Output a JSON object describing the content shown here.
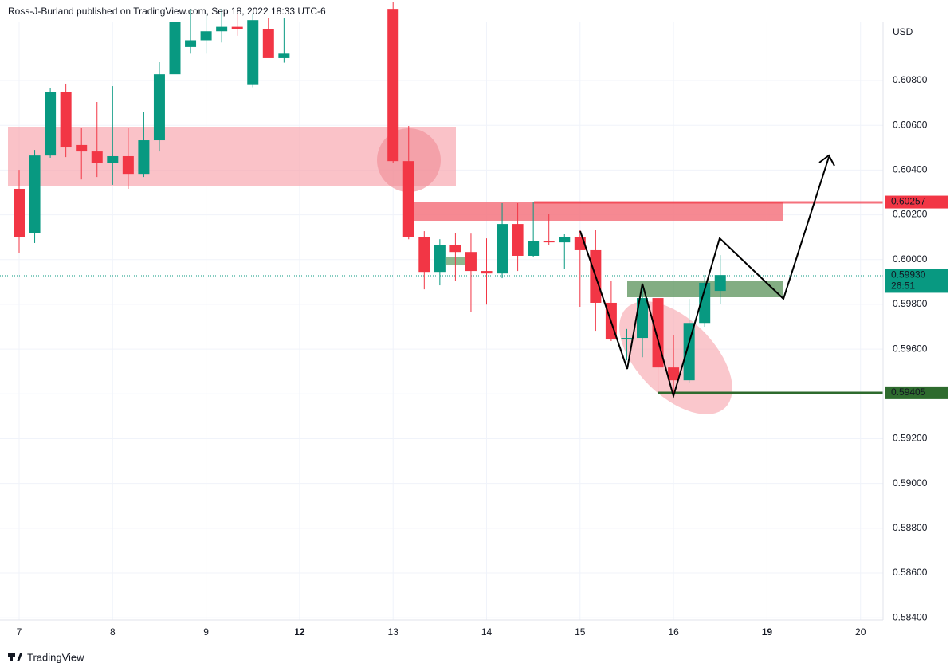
{
  "header": {
    "text": "Ross-J-Burland published on TradingView.com, Sep 18, 2022 18:33 UTC-6"
  },
  "footer": {
    "brand": "TradingView"
  },
  "chart_data": {
    "type": "candlestick",
    "currency": "USD",
    "up_color": "#089981",
    "down_color": "#f23645",
    "categories": [
      "7",
      null,
      null,
      null,
      null,
      null,
      "8",
      null,
      null,
      null,
      null,
      null,
      "9",
      null,
      null,
      null,
      null,
      null,
      "12",
      null,
      null,
      null,
      null,
      null,
      "13",
      null,
      null,
      null,
      null,
      null,
      "14",
      null,
      null,
      null,
      null,
      null,
      "15",
      null,
      null,
      null,
      null,
      null,
      "16",
      null,
      null,
      null,
      null,
      null,
      "19",
      null,
      null,
      null,
      null,
      null,
      "20"
    ],
    "bold_categories": [
      "12",
      "19"
    ],
    "open": [
      0.60316,
      0.6012,
      0.60465,
      0.6075,
      0.60512,
      0.60483,
      0.6043,
      0.60462,
      0.60383,
      0.60533,
      0.60828,
      0.6095,
      0.6098,
      0.6102,
      0.6104,
      0.6078,
      0.6103,
      0.609,
      null,
      null,
      null,
      null,
      null,
      null,
      0.6112,
      0.6044,
      0.60102,
      0.59945,
      0.60066,
      0.60034,
      0.59949,
      0.59938,
      0.60159,
      0.60017,
      0.60081,
      0.60077,
      0.60099,
      0.60042,
      0.59807,
      0.59643,
      0.5965,
      0.59828,
      0.59518,
      0.59461,
      0.59717,
      0.5986,
      null,
      null,
      null,
      null,
      null,
      null,
      null,
      null,
      null
    ],
    "high": [
      0.60401,
      0.6049,
      0.60768,
      0.60786,
      0.6059,
      0.60704,
      0.60775,
      0.6059,
      0.60661,
      0.60882,
      0.6112,
      0.6112,
      0.611,
      0.6112,
      0.611,
      0.611,
      0.6108,
      0.6108,
      null,
      null,
      null,
      null,
      null,
      null,
      0.6115,
      0.60597,
      0.60127,
      0.60091,
      0.6012,
      0.60116,
      0.60095,
      0.60252,
      0.60252,
      0.60259,
      0.60205,
      0.60113,
      0.60134,
      0.60134,
      0.59906,
      0.5969,
      0.59885,
      0.59828,
      0.59664,
      0.59824,
      0.59931,
      0.6002,
      null,
      null,
      null,
      null,
      null,
      null,
      null,
      null,
      null
    ],
    "low": [
      0.60031,
      0.60074,
      0.60455,
      0.60458,
      0.60358,
      0.60369,
      0.60334,
      0.60316,
      0.60369,
      0.60483,
      0.6079,
      0.6092,
      0.6092,
      0.6097,
      0.61,
      0.6077,
      0.6092,
      0.6088,
      null,
      null,
      null,
      null,
      null,
      null,
      0.6043,
      0.60091,
      0.59867,
      0.59885,
      0.59906,
      0.59767,
      0.59799,
      0.59917,
      0.59949,
      0.6001,
      0.60066,
      0.5996,
      0.59789,
      0.59682,
      0.59636,
      0.5955,
      0.59564,
      0.59411,
      0.5939,
      0.5945,
      0.597,
      0.598,
      null,
      null,
      null,
      null,
      null,
      null,
      null,
      null,
      null
    ],
    "close": [
      0.60102,
      0.60465,
      0.6075,
      0.60501,
      0.60483,
      0.6043,
      0.60462,
      0.60383,
      0.60533,
      0.60828,
      0.6106,
      0.6098,
      0.6102,
      0.6104,
      0.6103,
      0.6107,
      0.609,
      0.6092,
      null,
      null,
      null,
      null,
      null,
      null,
      0.6044,
      0.60102,
      0.59945,
      0.60066,
      0.60034,
      0.59949,
      0.59938,
      0.60159,
      0.60017,
      0.60081,
      0.60077,
      0.60099,
      0.60042,
      0.59807,
      0.59643,
      0.5965,
      0.59828,
      0.59518,
      0.59461,
      0.59717,
      0.59896,
      0.59931,
      null,
      null,
      null,
      null,
      null,
      null,
      null,
      null,
      null
    ],
    "ylim": [
      0.5839,
      0.6106
    ],
    "yticks": [
      {
        "value": 0.584,
        "label": "0.58400"
      },
      {
        "value": 0.586,
        "label": "0.58600"
      },
      {
        "value": 0.588,
        "label": "0.58800"
      },
      {
        "value": 0.59,
        "label": "0.59000"
      },
      {
        "value": 0.592,
        "label": "0.59200"
      },
      {
        "value": 0.594,
        "label": "0.59400"
      },
      {
        "value": 0.596,
        "label": "0.59600"
      },
      {
        "value": 0.598,
        "label": "0.59800"
      },
      {
        "value": 0.6,
        "label": "0.60000"
      },
      {
        "value": 0.602,
        "label": "0.60200"
      },
      {
        "value": 0.604,
        "label": "0.60400"
      },
      {
        "value": 0.606,
        "label": "0.60600"
      },
      {
        "value": 0.608,
        "label": "0.60800"
      }
    ],
    "grid": true,
    "price_labels": [
      {
        "value": 0.60257,
        "label": "0.60257",
        "color": "#f23645"
      },
      {
        "value": 0.5993,
        "label": "0.59930",
        "color": "#089981",
        "countdown": "26:51"
      },
      {
        "value": 0.59405,
        "label": "0.59405",
        "color": "#2e6b2e"
      }
    ]
  }
}
